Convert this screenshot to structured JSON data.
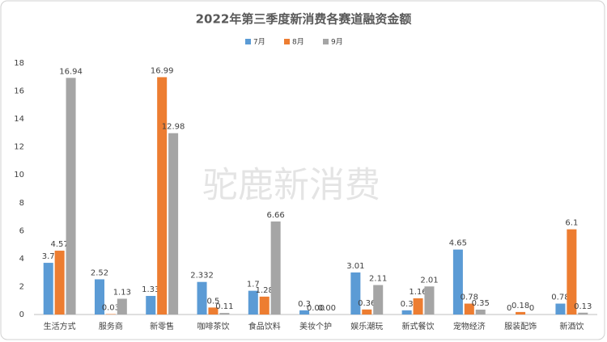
{
  "chart_data": {
    "type": "bar",
    "title": "2022年第三季度新消费各赛道融资金额",
    "watermark": "驼鹿新消费",
    "categories": [
      "生活方式",
      "服务商",
      "新零售",
      "咖啡茶饮",
      "食品饮料",
      "美妆个护",
      "娱乐潮玩",
      "新式餐饮",
      "宠物经济",
      "服装配饰",
      "新酒饮"
    ],
    "series": [
      {
        "name": "7月",
        "color": "#5b9bd5",
        "values": [
          3.7,
          2.52,
          1.33,
          2.332,
          1.7,
          0.3,
          3.01,
          0.3,
          4.65,
          0,
          0.78
        ]
      },
      {
        "name": "8月",
        "color": "#ed7d31",
        "values": [
          4.57,
          0.03,
          16.99,
          0.5,
          1.28,
          0,
          0.36,
          1.16,
          0.78,
          0.18,
          6.1
        ],
        "value_labels": [
          "4.57",
          "0.03",
          "16.99",
          "0.5",
          "1.28",
          "0.00",
          "0.36",
          "1.16",
          "0.78",
          "0.18",
          "6.1"
        ]
      },
      {
        "name": "9月",
        "color": "#a5a5a5",
        "values": [
          16.94,
          1.13,
          12.98,
          0.11,
          6.66,
          0,
          2.11,
          2.01,
          0.35,
          0,
          0.13
        ],
        "value_labels": [
          "16.94",
          "1.13",
          "12.98",
          "0.11",
          "6.66",
          "0.00",
          "2.11",
          "2.01",
          "0.35",
          "0",
          "0.13"
        ]
      }
    ],
    "ylim": [
      0,
      18
    ],
    "yticks": [
      0,
      2,
      4,
      6,
      8,
      10,
      12,
      14,
      16,
      18
    ],
    "grid": false,
    "legend": "top"
  }
}
